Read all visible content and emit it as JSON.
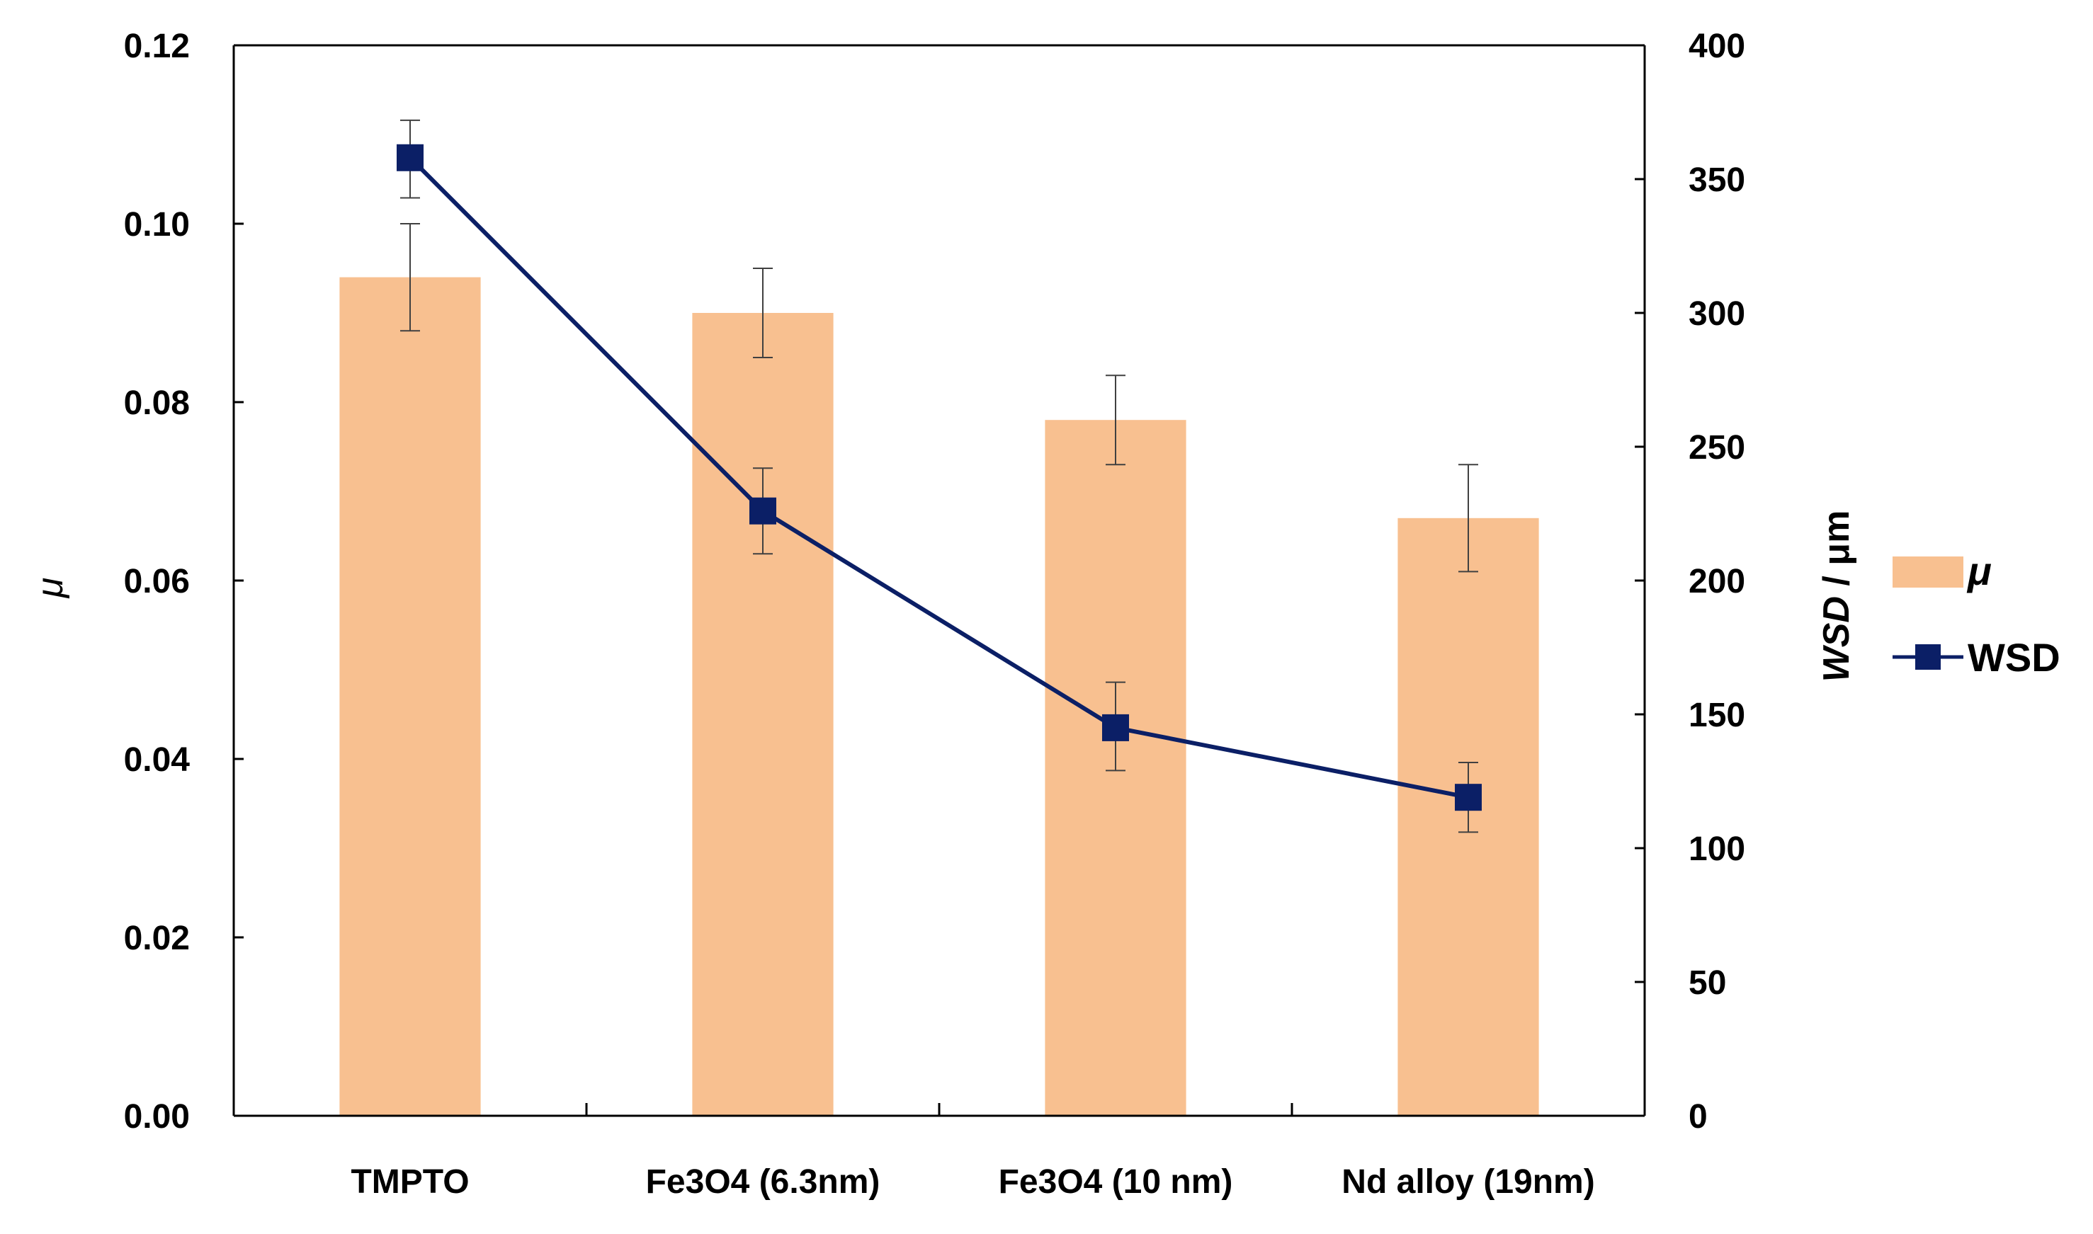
{
  "chart_data": {
    "type": "bar+line",
    "title": "",
    "categories": [
      "TMPTO",
      "Fe3O4 (6.3nm)",
      "Fe3O4 (10 nm)",
      "Nd alloy (19nm)"
    ],
    "series": [
      {
        "name": "μ",
        "kind": "bar",
        "axis": "left",
        "color": "#F8C090",
        "values": [
          0.094,
          0.09,
          0.078,
          0.067
        ],
        "err_low": [
          0.088,
          0.085,
          0.073,
          0.061
        ],
        "err_high": [
          0.1,
          0.095,
          0.083,
          0.073
        ]
      },
      {
        "name": "WSD",
        "kind": "line",
        "axis": "right",
        "color": "#0B1F66",
        "values": [
          358,
          226,
          145,
          119
        ],
        "err_low": [
          343,
          210,
          129,
          106
        ],
        "err_high": [
          372,
          242,
          162,
          132
        ]
      }
    ],
    "y_left": {
      "label": "μ",
      "range": [
        0,
        0.12
      ],
      "ticks": [
        "0.00",
        "0.02",
        "0.04",
        "0.06",
        "0.08",
        "0.10",
        "0.12"
      ]
    },
    "y_right": {
      "label_italic": "WSD",
      "label_unit": " / μm",
      "range": [
        0,
        400
      ],
      "ticks": [
        "0",
        "50",
        "100",
        "150",
        "200",
        "250",
        "300",
        "350",
        "400"
      ]
    },
    "grid": false,
    "legend_position": "right"
  }
}
